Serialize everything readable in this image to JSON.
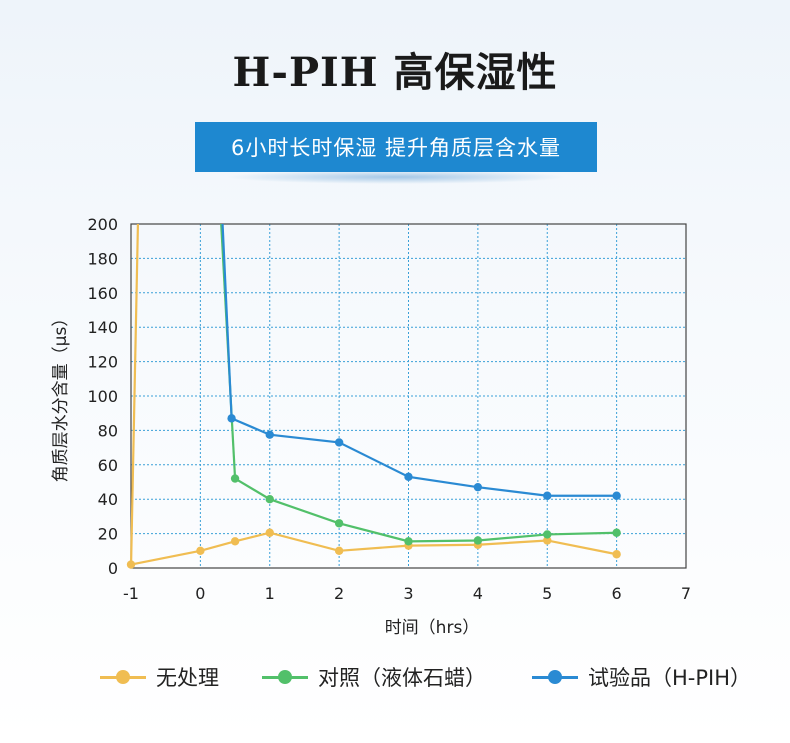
{
  "header": {
    "title": "H-PIH  高保湿性",
    "banner": "6小时长时保湿 提升角质层含水量"
  },
  "chart_data": {
    "type": "line",
    "xlabel": "时间（hrs）",
    "ylabel": "角质层水分含量（μs）",
    "xlim": [
      -1,
      7
    ],
    "ylim": [
      0,
      200
    ],
    "xticks": [
      "-1",
      "0",
      "1",
      "2",
      "3",
      "4",
      "5",
      "6",
      "7"
    ],
    "yticks": [
      "0",
      "20",
      "40",
      "60",
      "80",
      "100",
      "120",
      "140",
      "160",
      "180",
      "200"
    ],
    "grid": true,
    "legend_position": "bottom",
    "series": [
      {
        "name": "无处理",
        "color": "#f0bd52",
        "points": [
          [
            -1,
            2
          ],
          [
            0,
            10
          ],
          [
            0.5,
            15.5
          ],
          [
            1,
            20.5
          ],
          [
            2,
            10
          ],
          [
            3,
            13
          ],
          [
            4,
            13.5
          ],
          [
            5,
            16
          ],
          [
            6,
            8
          ]
        ],
        "spike": [
          [
            -1,
            0
          ],
          [
            -0.9,
            200
          ]
        ]
      },
      {
        "name": "对照（液体石蜡）",
        "color": "#52c06a",
        "points": [
          [
            0.5,
            52
          ],
          [
            1,
            40
          ],
          [
            2,
            26
          ],
          [
            3,
            15.5
          ],
          [
            4,
            16
          ],
          [
            5,
            19.5
          ],
          [
            6,
            20.5
          ]
        ],
        "spike": [
          [
            0.3,
            200
          ],
          [
            0.5,
            52
          ]
        ]
      },
      {
        "name": "试验品（H-PIH）",
        "color": "#2a8ad3",
        "points": [
          [
            0.45,
            87
          ],
          [
            1,
            77.5
          ],
          [
            2,
            73
          ],
          [
            3,
            53
          ],
          [
            4,
            47
          ],
          [
            5,
            42
          ],
          [
            6,
            42
          ]
        ],
        "spike": [
          [
            0.32,
            200
          ],
          [
            0.45,
            87
          ]
        ]
      }
    ]
  }
}
